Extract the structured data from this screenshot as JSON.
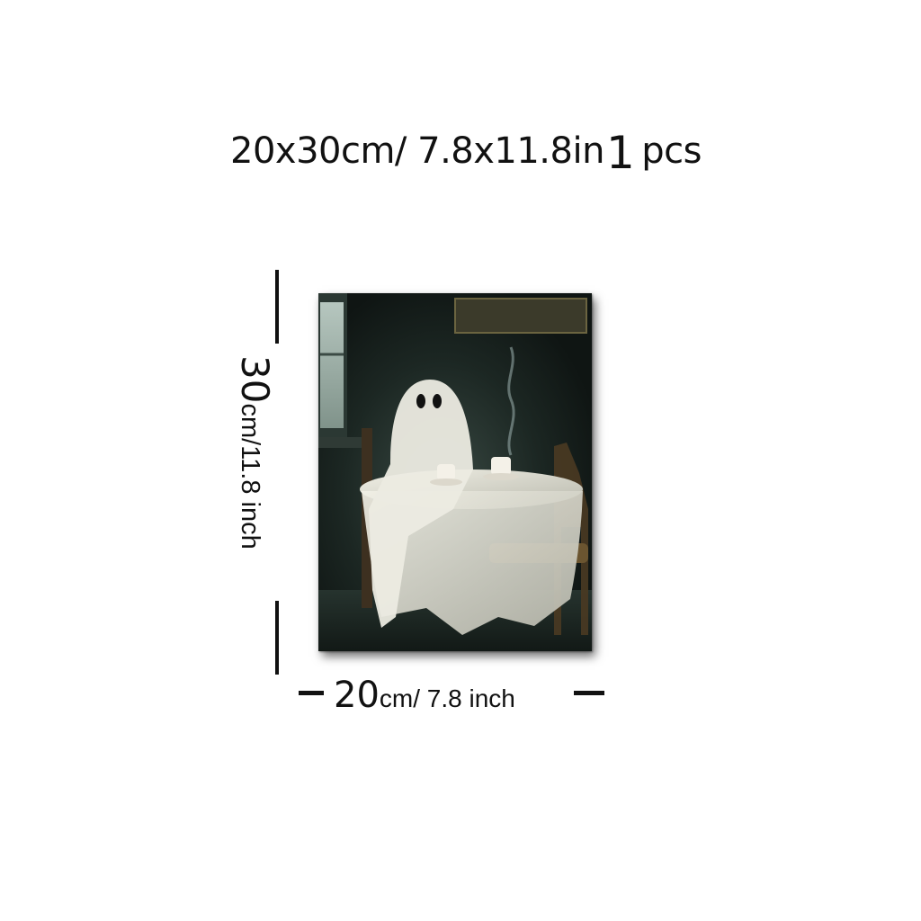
{
  "headline": {
    "size": "20x30cm/ 7.8x11.8in",
    "count": "1",
    "unit": "pcs"
  },
  "height_label": {
    "value": "30",
    "unit": "cm/11.8 inch"
  },
  "width_label": {
    "value": "20",
    "unit": "cm/ 7.8 inch"
  },
  "colors": {
    "background": "#ffffff",
    "text": "#111111",
    "painting_dark": "#1a2421"
  },
  "painting": {
    "subject": "ghost-at-tea-table-painting"
  }
}
